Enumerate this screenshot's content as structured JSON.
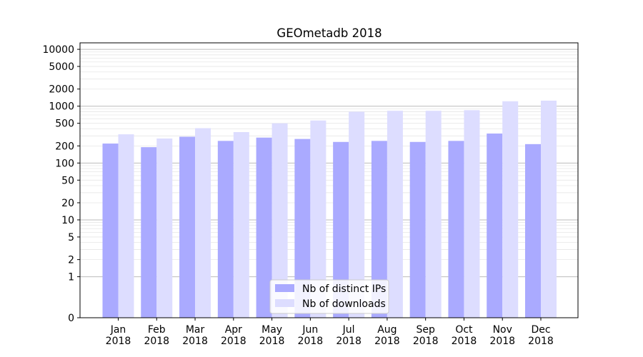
{
  "chart_data": {
    "type": "bar",
    "title": "GEOmetadb 2018",
    "xlabel": "",
    "ylabel": "",
    "y_scale": "symlog",
    "ylim": [
      0,
      13000
    ],
    "y_ticks": [
      {
        "value": 0,
        "label": "0"
      },
      {
        "value": 1,
        "label": "1"
      },
      {
        "value": 2,
        "label": "2"
      },
      {
        "value": 5,
        "label": "5"
      },
      {
        "value": 10,
        "label": "10"
      },
      {
        "value": 20,
        "label": "20"
      },
      {
        "value": 50,
        "label": "50"
      },
      {
        "value": 100,
        "label": "100"
      },
      {
        "value": 200,
        "label": "200"
      },
      {
        "value": 500,
        "label": "500"
      },
      {
        "value": 1000,
        "label": "1000"
      },
      {
        "value": 2000,
        "label": "2000"
      },
      {
        "value": 5000,
        "label": "5000"
      },
      {
        "value": 10000,
        "label": "10000"
      }
    ],
    "categories": [
      {
        "month": "Jan",
        "year": "2018"
      },
      {
        "month": "Feb",
        "year": "2018"
      },
      {
        "month": "Mar",
        "year": "2018"
      },
      {
        "month": "Apr",
        "year": "2018"
      },
      {
        "month": "May",
        "year": "2018"
      },
      {
        "month": "Jun",
        "year": "2018"
      },
      {
        "month": "Jul",
        "year": "2018"
      },
      {
        "month": "Aug",
        "year": "2018"
      },
      {
        "month": "Sep",
        "year": "2018"
      },
      {
        "month": "Oct",
        "year": "2018"
      },
      {
        "month": "Nov",
        "year": "2018"
      },
      {
        "month": "Dec",
        "year": "2018"
      }
    ],
    "series": [
      {
        "name": "Nb of distinct IPs",
        "color": "#aaaaff",
        "values": [
          220,
          190,
          290,
          245,
          280,
          265,
          235,
          245,
          235,
          245,
          330,
          215
        ]
      },
      {
        "name": "Nb of downloads",
        "color": "#ddddff",
        "values": [
          320,
          270,
          410,
          350,
          500,
          560,
          800,
          830,
          830,
          850,
          1220,
          1250
        ]
      }
    ],
    "grid": "horizontal",
    "legend_position": "lower-center"
  }
}
